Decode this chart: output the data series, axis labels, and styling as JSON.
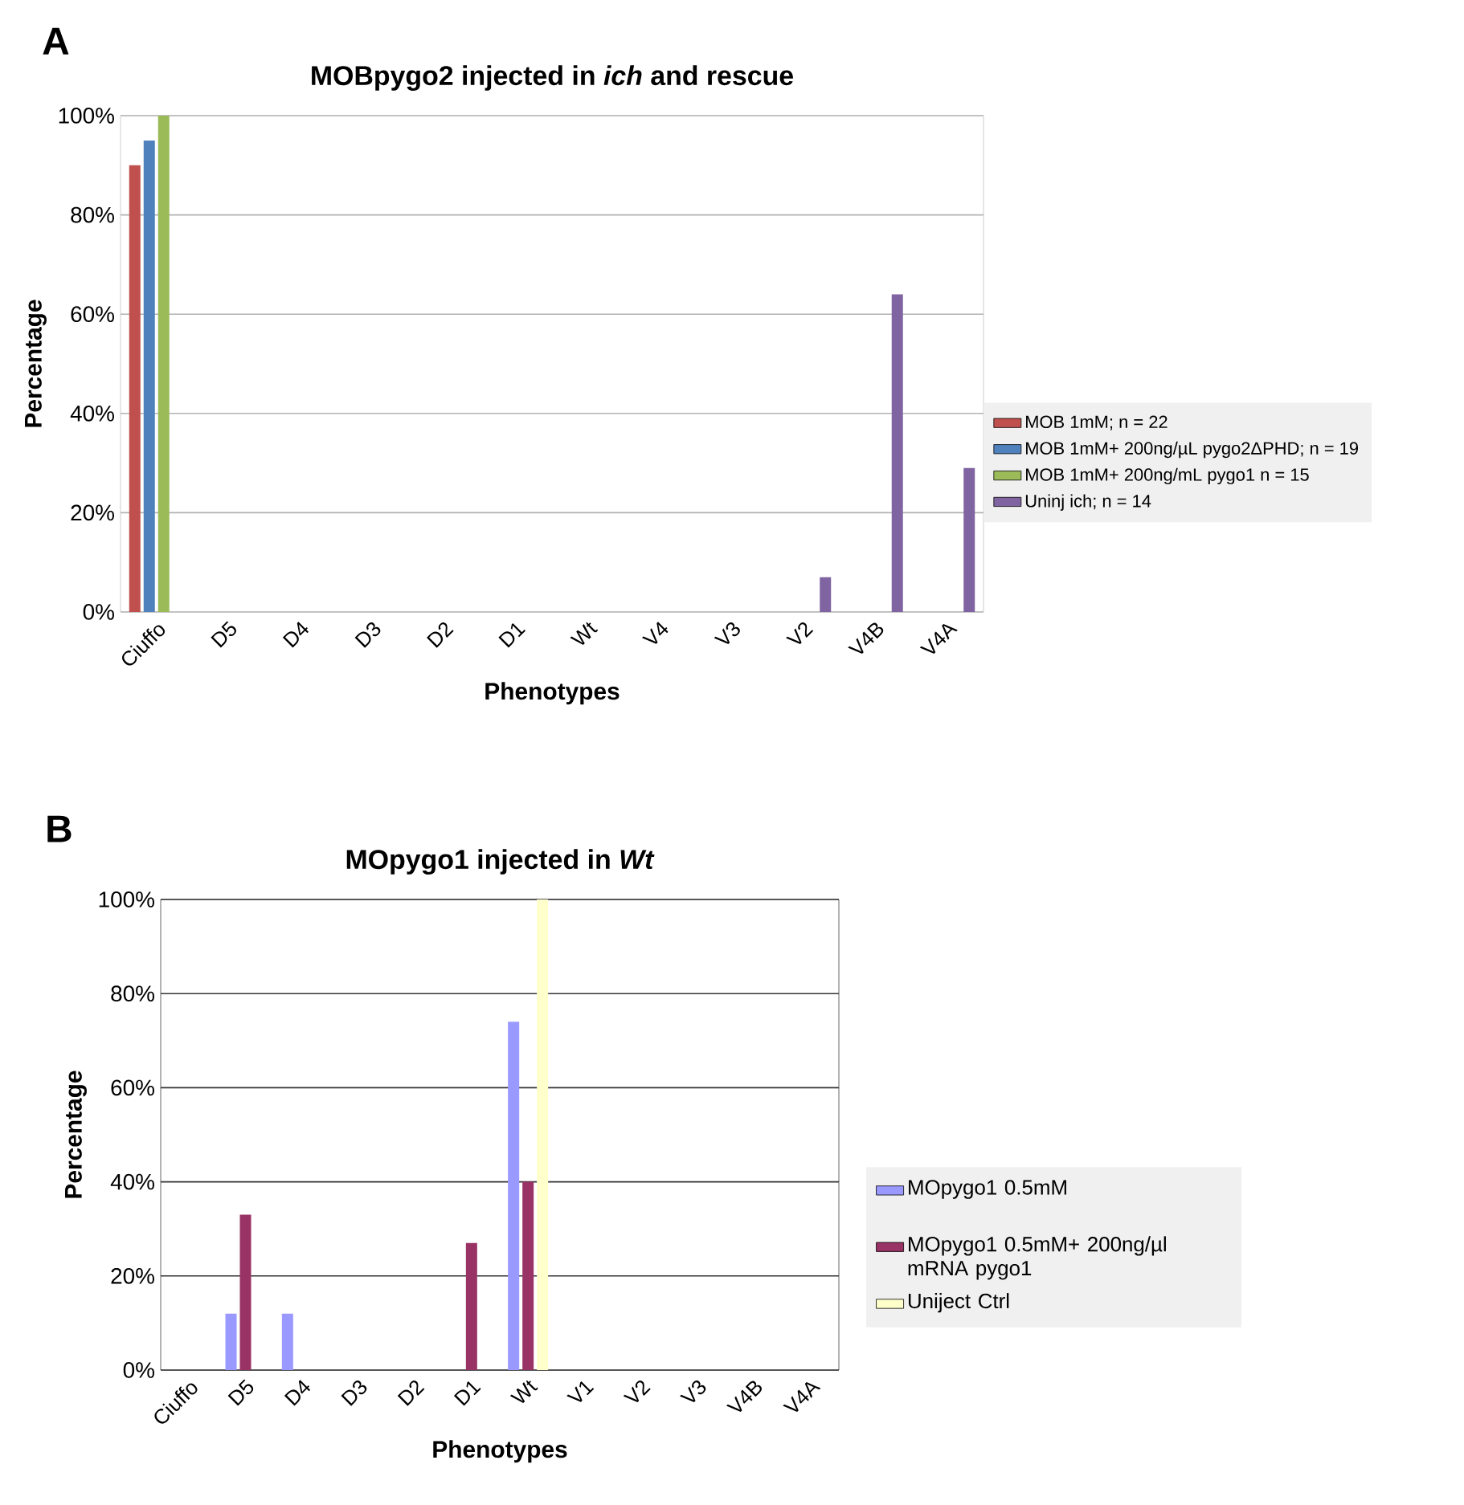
{
  "chart_data": [
    {
      "type": "bar",
      "title": "MOBpygo2 injected in *ich* and rescue",
      "xlabel": "Phenotypes",
      "ylabel": "Percentage",
      "annotations": [
        "A"
      ],
      "categories": [
        "Ciuffo",
        "D5",
        "D4",
        "D3",
        "D2",
        "D1",
        "Wt",
        "V4",
        "V3",
        "V2",
        "V4B",
        "V4A"
      ],
      "series": [
        {
          "name": "MOB 1mM; n = 22",
          "color": "#c0504d",
          "values": [
            90,
            0,
            0,
            0,
            0,
            0,
            0,
            0,
            0,
            0,
            0,
            0
          ]
        },
        {
          "name": "MOB 1mM+ 200ng/µL pygo2ΔPHD; n = 19",
          "color": "#4f81bd",
          "values": [
            95,
            0,
            0,
            0,
            0,
            0,
            0,
            0,
            0,
            0,
            0,
            0
          ]
        },
        {
          "name": "MOB 1mM+ 200ng/mL pygo1 n = 15",
          "color": "#9bbb59",
          "values": [
            100,
            0,
            0,
            0,
            0,
            0,
            0,
            0,
            0,
            0,
            0,
            0
          ]
        },
        {
          "name": "Uninj ich; n = 14",
          "color": "#8064a2",
          "values": [
            0,
            0,
            0,
            0,
            0,
            0,
            0,
            0,
            0,
            7,
            64,
            29
          ]
        }
      ],
      "ylim": [
        0,
        100
      ],
      "yticks": [
        {
          "value": 0,
          "label": "0%"
        },
        {
          "value": 20,
          "label": "20%"
        },
        {
          "value": 40,
          "label": "40%"
        },
        {
          "value": 60,
          "label": "60%"
        },
        {
          "value": 80,
          "label": "80%"
        },
        {
          "value": 100,
          "label": "100%"
        }
      ],
      "grid": "y",
      "legend": "right"
    },
    {
      "type": "bar",
      "title": "MOpygo1 injected in *Wt*",
      "xlabel": "Phenotypes",
      "ylabel": "Percentage",
      "annotations": [
        "B"
      ],
      "categories": [
        "Ciuffo",
        "D5",
        "D4",
        "D3",
        "D2",
        "D1",
        "Wt",
        "V1",
        "V2",
        "V3",
        "V4B",
        "V4A"
      ],
      "series": [
        {
          "name": "MOpygo1 0.5mM",
          "color": "#9999ff",
          "values": [
            0,
            12,
            12,
            0,
            0,
            0,
            74,
            0,
            0,
            0,
            0,
            0
          ]
        },
        {
          "name": "MOpygo1 0.5mM+ 200ng/µl mRNA pygo1",
          "color": "#993366",
          "values": [
            0,
            33,
            0,
            0,
            0,
            27,
            40,
            0,
            0,
            0,
            0,
            0
          ]
        },
        {
          "name": "Uniject Ctrl",
          "color": "#ffffcc",
          "values": [
            0,
            0,
            0,
            0,
            0,
            0,
            100,
            0,
            0,
            0,
            0,
            0
          ]
        }
      ],
      "ylim": [
        0,
        100
      ],
      "yticks": [
        {
          "value": 0,
          "label": "0%"
        },
        {
          "value": 20,
          "label": "20%"
        },
        {
          "value": 40,
          "label": "40%"
        },
        {
          "value": 60,
          "label": "60%"
        },
        {
          "value": 80,
          "label": "80%"
        },
        {
          "value": 100,
          "label": "100%"
        }
      ],
      "grid": "y",
      "legend": "right"
    }
  ]
}
